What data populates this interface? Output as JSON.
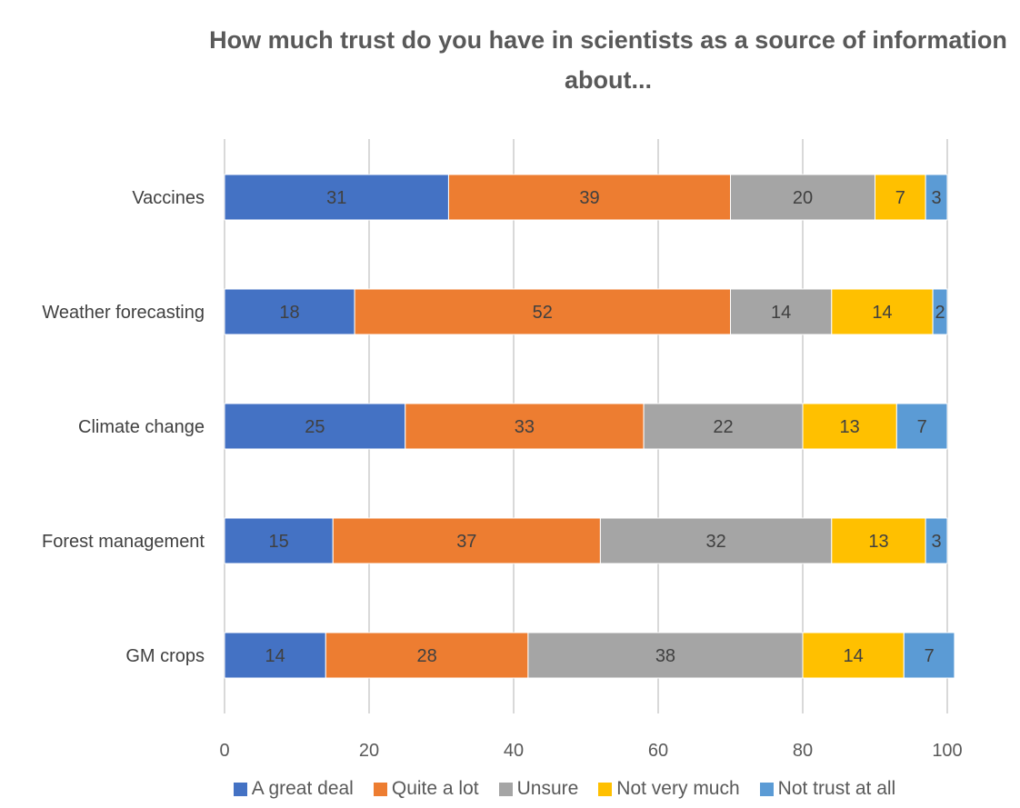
{
  "chart_data": {
    "type": "bar",
    "orientation": "horizontal",
    "stacked": true,
    "title_lines": [
      "How much trust do you have in scientists as a source of information",
      "about..."
    ],
    "title": "How much trust do you have in scientists as a source of information about...",
    "xlabel": "",
    "ylabel": "",
    "xlim": [
      0,
      100
    ],
    "xticks": [
      0,
      20,
      40,
      60,
      80,
      100
    ],
    "grid": "vertical",
    "legend_position": "bottom",
    "categories": [
      "Vaccines",
      "Weather forecasting",
      "Climate change",
      "Forest management",
      "GM crops"
    ],
    "series": [
      {
        "name": "A great deal",
        "color": "#4472C4",
        "values": [
          31,
          18,
          25,
          15,
          14
        ]
      },
      {
        "name": "Quite a lot",
        "color": "#ED7D31",
        "values": [
          39,
          52,
          33,
          37,
          28
        ]
      },
      {
        "name": "Unsure",
        "color": "#A5A5A5",
        "values": [
          20,
          14,
          22,
          32,
          38
        ]
      },
      {
        "name": "Not very much",
        "color": "#FFC000",
        "values": [
          7,
          14,
          13,
          13,
          14
        ]
      },
      {
        "name": "Not trust at all",
        "color": "#5B9BD5",
        "values": [
          3,
          2,
          7,
          3,
          7
        ]
      }
    ]
  }
}
